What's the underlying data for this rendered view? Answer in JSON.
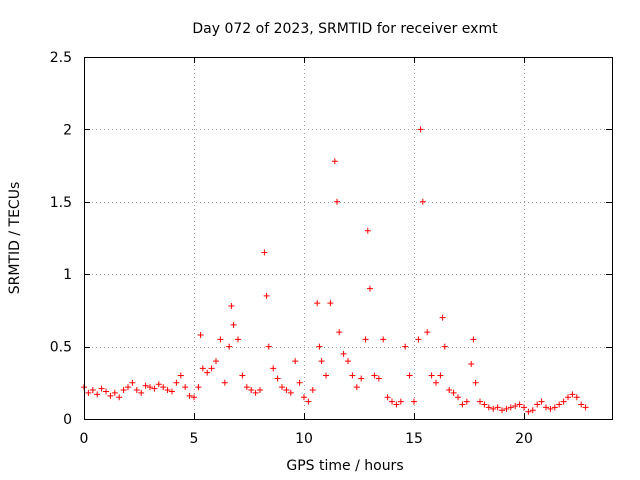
{
  "chart_data": {
    "type": "scatter",
    "title": "Day 072 of 2023, SRMTID for receiver exmt",
    "xlabel": "GPS time / hours",
    "ylabel": "SRMTID / TECUs",
    "xlim": [
      0,
      24
    ],
    "ylim": [
      0,
      2.5
    ],
    "xticks": [
      0,
      5,
      10,
      15,
      20
    ],
    "xtick_labels": [
      "0",
      "5",
      "10",
      "15",
      "20"
    ],
    "yticks": [
      0,
      0.5,
      1,
      1.5,
      2,
      2.5
    ],
    "ytick_labels": [
      "0",
      "0.5",
      "1",
      "1.5",
      "2",
      "2.5"
    ],
    "grid": true,
    "marker": "plus",
    "series": [
      {
        "name": "SRMTID",
        "color": "#ff0000",
        "x": [
          0.0,
          0.2,
          0.4,
          0.6,
          0.8,
          1.0,
          1.2,
          1.4,
          1.6,
          1.8,
          2.0,
          2.2,
          2.4,
          2.6,
          2.8,
          3.0,
          3.2,
          3.4,
          3.6,
          3.8,
          4.0,
          4.2,
          4.4,
          4.6,
          4.8,
          5.0,
          5.2,
          5.3,
          5.4,
          5.6,
          5.8,
          6.0,
          6.2,
          6.4,
          6.6,
          6.7,
          6.8,
          7.0,
          7.2,
          7.4,
          7.6,
          7.8,
          8.0,
          8.2,
          8.3,
          8.4,
          8.6,
          8.8,
          9.0,
          9.2,
          9.4,
          9.6,
          9.8,
          10.0,
          10.2,
          10.4,
          10.6,
          10.7,
          10.8,
          11.0,
          11.2,
          11.4,
          11.5,
          11.6,
          11.8,
          12.0,
          12.2,
          12.4,
          12.6,
          12.8,
          12.9,
          13.0,
          13.2,
          13.4,
          13.6,
          13.8,
          14.0,
          14.2,
          14.4,
          14.6,
          14.8,
          15.0,
          15.2,
          15.3,
          15.4,
          15.6,
          15.8,
          16.0,
          16.2,
          16.3,
          16.4,
          16.6,
          16.8,
          17.0,
          17.2,
          17.4,
          17.6,
          17.7,
          17.8,
          18.0,
          18.2,
          18.4,
          18.6,
          18.8,
          19.0,
          19.2,
          19.4,
          19.6,
          19.8,
          20.0,
          20.2,
          20.4,
          20.6,
          20.8,
          21.0,
          21.2,
          21.4,
          21.6,
          21.8,
          22.0,
          22.2,
          22.4,
          22.6,
          22.8
        ],
        "y": [
          0.22,
          0.18,
          0.2,
          0.17,
          0.21,
          0.19,
          0.16,
          0.18,
          0.15,
          0.2,
          0.22,
          0.25,
          0.2,
          0.18,
          0.23,
          0.22,
          0.21,
          0.24,
          0.22,
          0.2,
          0.19,
          0.25,
          0.3,
          0.22,
          0.16,
          0.15,
          0.22,
          0.58,
          0.35,
          0.32,
          0.35,
          0.4,
          0.55,
          0.25,
          0.5,
          0.78,
          0.65,
          0.55,
          0.3,
          0.22,
          0.2,
          0.18,
          0.2,
          1.15,
          0.85,
          0.5,
          0.35,
          0.28,
          0.22,
          0.2,
          0.18,
          0.4,
          0.25,
          0.15,
          0.12,
          0.2,
          0.8,
          0.5,
          0.4,
          0.3,
          0.8,
          1.78,
          1.5,
          0.6,
          0.45,
          0.4,
          0.3,
          0.22,
          0.28,
          0.55,
          1.3,
          0.9,
          0.3,
          0.28,
          0.55,
          0.15,
          0.12,
          0.1,
          0.12,
          0.5,
          0.3,
          0.12,
          0.55,
          2.0,
          1.5,
          0.6,
          0.3,
          0.25,
          0.3,
          0.7,
          0.5,
          0.2,
          0.18,
          0.15,
          0.1,
          0.12,
          0.38,
          0.55,
          0.25,
          0.12,
          0.1,
          0.08,
          0.07,
          0.08,
          0.06,
          0.07,
          0.08,
          0.09,
          0.1,
          0.08,
          0.05,
          0.06,
          0.1,
          0.12,
          0.08,
          0.07,
          0.08,
          0.1,
          0.12,
          0.15,
          0.17,
          0.15,
          0.1,
          0.08
        ]
      }
    ]
  }
}
